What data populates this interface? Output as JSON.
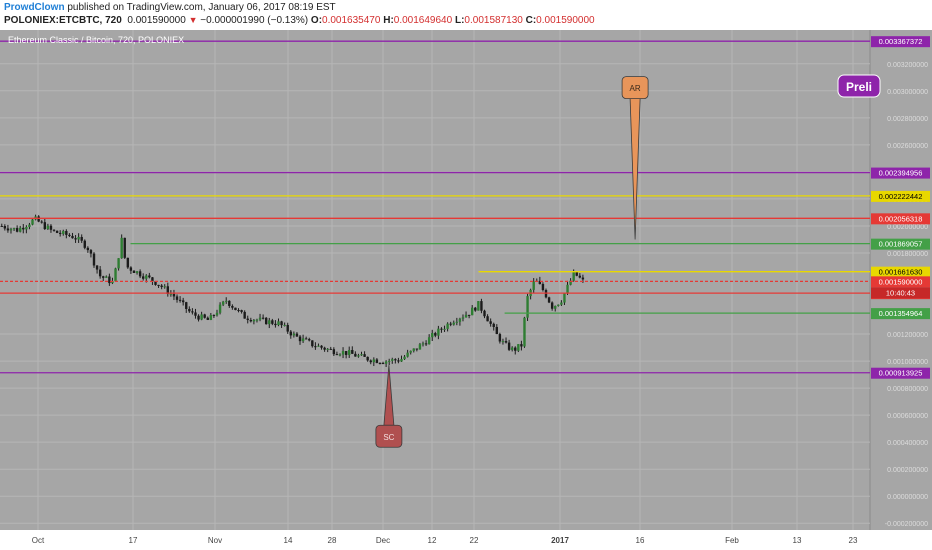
{
  "header": {
    "author": "ProwdClown",
    "published": "published on TradingView.com, January 06, 2017 08:19 EST",
    "symbol": "POLONIEX:ETCBTC, 720",
    "last": "0.001590000",
    "arrow": "▼",
    "change": "−0.000001990 (−0.13%)",
    "o_label": "O:",
    "o_value": "0.001635470",
    "h_label": "H:",
    "h_value": "0.001649640",
    "l_label": "L:",
    "l_value": "0.001587130",
    "c_label": "C:",
    "c_value": "0.001590000"
  },
  "chart_data": {
    "type": "candlestick",
    "title": "Ethereum Classic / Bitcoin, 720, POLONIEX",
    "x_ticks": [
      "Oct",
      "17",
      "Nov",
      "14",
      "28",
      "Dec",
      "12",
      "22",
      "2017",
      "16",
      "Feb",
      "13",
      "23"
    ],
    "y_ticks": [
      "0.003200000",
      "0.003000000",
      "0.002800000",
      "0.002600000",
      "0.002400000",
      "0.002200000",
      "0.002000000",
      "0.001800000",
      "0.001200000",
      "0.001000000",
      "0.000800000",
      "0.000600000",
      "0.000400000",
      "0.000200000",
      "0.000000000",
      "-0.000200000"
    ],
    "ylim": [
      -0.00025,
      0.00345
    ],
    "grid": true,
    "price_path": [
      [
        0.00202,
        0.002
      ],
      [
        0.02,
        0.00197
      ],
      [
        0.04,
        0.00205
      ],
      [
        0.06,
        0.00196
      ],
      [
        0.085,
        0.00192
      ],
      [
        0.1,
        0.00185
      ],
      [
        0.115,
        0.00163
      ],
      [
        0.13,
        0.00158
      ],
      [
        0.14,
        0.0019
      ],
      [
        0.145,
        0.0017
      ],
      [
        0.16,
        0.00165
      ],
      [
        0.18,
        0.00158
      ],
      [
        0.2,
        0.00148
      ],
      [
        0.22,
        0.00135
      ],
      [
        0.24,
        0.0013
      ],
      [
        0.26,
        0.00145
      ],
      [
        0.28,
        0.00133
      ],
      [
        0.3,
        0.0013
      ],
      [
        0.32,
        0.00128
      ],
      [
        0.34,
        0.00118
      ],
      [
        0.36,
        0.00112
      ],
      [
        0.38,
        0.00108
      ],
      [
        0.4,
        0.00106
      ],
      [
        0.42,
        0.00102
      ],
      [
        0.44,
        0.001
      ],
      [
        0.46,
        0.00101
      ],
      [
        0.48,
        0.0011
      ],
      [
        0.5,
        0.0012
      ],
      [
        0.52,
        0.0013
      ],
      [
        0.54,
        0.00136
      ],
      [
        0.55,
        0.00142
      ],
      [
        0.56,
        0.00132
      ],
      [
        0.57,
        0.0012
      ],
      [
        0.58,
        0.00112
      ],
      [
        0.59,
        0.00108
      ],
      [
        0.6,
        0.00112
      ],
      [
        0.605,
        0.00145
      ],
      [
        0.615,
        0.0016
      ],
      [
        0.625,
        0.00152
      ],
      [
        0.635,
        0.0014
      ],
      [
        0.645,
        0.00145
      ],
      [
        0.66,
        0.00165
      ],
      [
        0.67,
        0.00159
      ]
    ],
    "levels": [
      {
        "value": "0.003367372",
        "y": 0.003367372,
        "color": "#8e24aa",
        "x_start": 0.0
      },
      {
        "value": "0.002394956",
        "y": 0.002394956,
        "color": "#8e24aa",
        "x_start": 0.0
      },
      {
        "value": "0.002222442",
        "y": 0.002222442,
        "color": "#e8d800",
        "x_start": 0.0
      },
      {
        "value": "0.002056318",
        "y": 0.002056318,
        "color": "#e53935",
        "x_start": 0.0
      },
      {
        "value": "0.001869057",
        "y": 0.001869057,
        "color": "#43a047",
        "x_start": 0.15
      },
      {
        "value": "0.001661630",
        "y": 0.00166163,
        "color": "#e8d800",
        "x_start": 0.55
      },
      {
        "value": "0.001590000",
        "y": 0.00159,
        "color": "#e53935",
        "x_start": 0.0,
        "dashed": true
      },
      {
        "value": "0.001502622",
        "y": 0.001502622,
        "color": "#e53935",
        "x_start": 0.0
      },
      {
        "value": "0.001354964",
        "y": 0.001354964,
        "color": "#43a047",
        "x_start": 0.58
      },
      {
        "value": "0.000913925",
        "y": 0.000913925,
        "color": "#8e24aa",
        "x_start": 0.0
      }
    ],
    "countdown": "10:40:43",
    "annotations": [
      {
        "label": "AR",
        "color": "#e8955a",
        "direction": "down",
        "x": 0.73,
        "target": 0.0019
      },
      {
        "label": "SC",
        "color": "#b05050",
        "direction": "up",
        "x": 0.447,
        "target": 0.00097
      }
    ],
    "overflow_label": "Preli"
  }
}
